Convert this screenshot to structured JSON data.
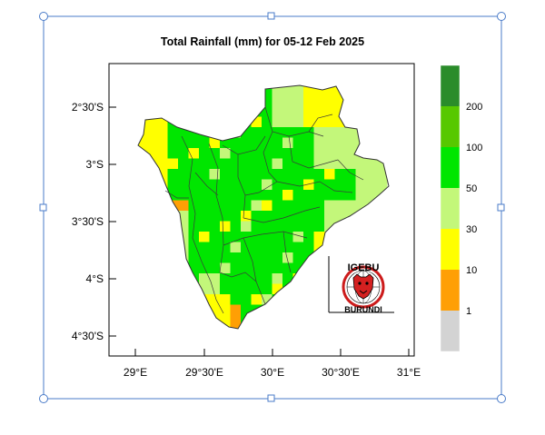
{
  "map": {
    "title": "Total Rainfall (mm) for 05-12 Feb 2025",
    "lat_ticks": [
      "2°30'S",
      "3°S",
      "3°30'S",
      "4°S",
      "4°30'S"
    ],
    "lon_ticks": [
      "29°E",
      "29°30'E",
      "30°E",
      "30°30'E",
      "31°E"
    ],
    "logo": {
      "top_text": "IGEBU",
      "bottom_text": "BURUNDI"
    }
  },
  "legend": {
    "title": "",
    "tick_labels": [
      "1",
      "10",
      "30",
      "50",
      "100",
      "200"
    ],
    "classes": [
      {
        "range": "<1",
        "color": "#d3d3d3"
      },
      {
        "range": "1-10",
        "color": "#ff9f05"
      },
      {
        "range": "10-30",
        "color": "#ffff00"
      },
      {
        "range": "30-50",
        "color": "#c3f77a"
      },
      {
        "range": "50-100",
        "color": "#00e600"
      },
      {
        "range": "100-200",
        "color": "#57c800"
      },
      {
        "range": ">200",
        "color": "#2a8c2a"
      }
    ]
  }
}
